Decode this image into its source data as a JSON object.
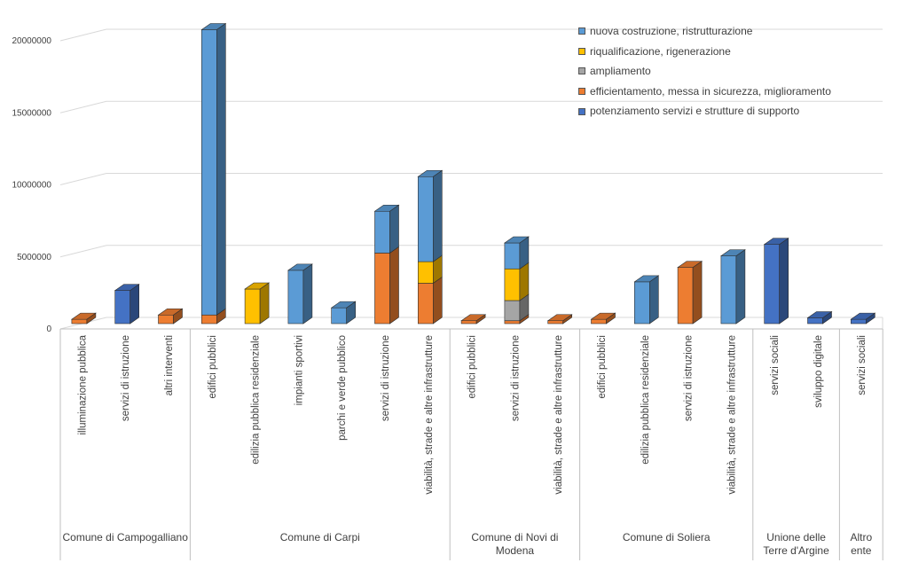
{
  "chart_data": {
    "type": "bar",
    "stacked": true,
    "three_d": true,
    "grid": true,
    "legend_position": "top-right",
    "ylim": [
      0,
      20000000
    ],
    "yticks": [
      "0",
      "5000000",
      "10000000",
      "15000000",
      "20000000"
    ],
    "series": [
      {
        "name": "nuova costruzione, ristrutturazione",
        "color": "#5b9bd5"
      },
      {
        "name": "riqualificazione, rigenerazione",
        "color": "#ffc000"
      },
      {
        "name": "ampliamento",
        "color": "#a5a5a5"
      },
      {
        "name": "efficientamento, messa in sicurezza, miglioramento",
        "color": "#ed7d31"
      },
      {
        "name": "potenziamento servizi e strutture di supporto",
        "color": "#4472c4"
      }
    ],
    "groups": [
      {
        "label": "Comune di Campogalliano",
        "categories": [
          {
            "label": "illuminazione pubblica",
            "values": [
              0,
              0,
              0,
              300000,
              0
            ]
          },
          {
            "label": "servizi di istruzione",
            "values": [
              0,
              0,
              0,
              0,
              2300000
            ]
          },
          {
            "label": "altri interventi",
            "values": [
              0,
              0,
              0,
              600000,
              0
            ]
          }
        ]
      },
      {
        "label": "Comune di Carpi",
        "categories": [
          {
            "label": "edifici pubblici",
            "values": [
              19800000,
              0,
              0,
              600000,
              0
            ]
          },
          {
            "label": "edilizia pubblica residenziale",
            "values": [
              0,
              2400000,
              0,
              0,
              0
            ]
          },
          {
            "label": "impianti sportivi",
            "values": [
              3700000,
              0,
              0,
              0,
              0
            ]
          },
          {
            "label": "parchi e verde pubblico",
            "values": [
              1100000,
              0,
              0,
              0,
              0
            ]
          },
          {
            "label": "servizi di istruzione",
            "values": [
              2900000,
              0,
              0,
              4900000,
              0
            ]
          },
          {
            "label": "viabilità, strade e altre infrastrutture",
            "values": [
              5900000,
              1500000,
              0,
              2800000,
              0
            ]
          }
        ]
      },
      {
        "label": "Comune di Novi di Modena",
        "categories": [
          {
            "label": "edifici pubblici",
            "values": [
              0,
              0,
              0,
              200000,
              0
            ]
          },
          {
            "label": "servizi di istruzione",
            "values": [
              1800000,
              2200000,
              1400000,
              200000,
              0
            ]
          },
          {
            "label": "viabilità, strade e altre infrastrutture",
            "values": [
              0,
              0,
              0,
              200000,
              0
            ]
          }
        ]
      },
      {
        "label": "Comune di Soliera",
        "categories": [
          {
            "label": "edifici pubblici",
            "values": [
              0,
              0,
              0,
              300000,
              0
            ]
          },
          {
            "label": "edilizia pubblica residenziale",
            "values": [
              2900000,
              0,
              0,
              0,
              0
            ]
          },
          {
            "label": "servizi di istruzione",
            "values": [
              0,
              0,
              0,
              3900000,
              0
            ]
          },
          {
            "label": "viabilità, strade e altre infrastrutture",
            "values": [
              4700000,
              0,
              0,
              0,
              0
            ]
          }
        ]
      },
      {
        "label": "Unione delle Terre d'Argine",
        "categories": [
          {
            "label": "servizi sociali",
            "values": [
              0,
              0,
              0,
              0,
              5500000
            ]
          },
          {
            "label": "sviluppo digitale",
            "values": [
              0,
              0,
              0,
              0,
              400000
            ]
          }
        ]
      },
      {
        "label": "Altro ente",
        "categories": [
          {
            "label": "servizi sociali",
            "values": [
              0,
              0,
              0,
              0,
              300000
            ]
          }
        ]
      }
    ]
  }
}
